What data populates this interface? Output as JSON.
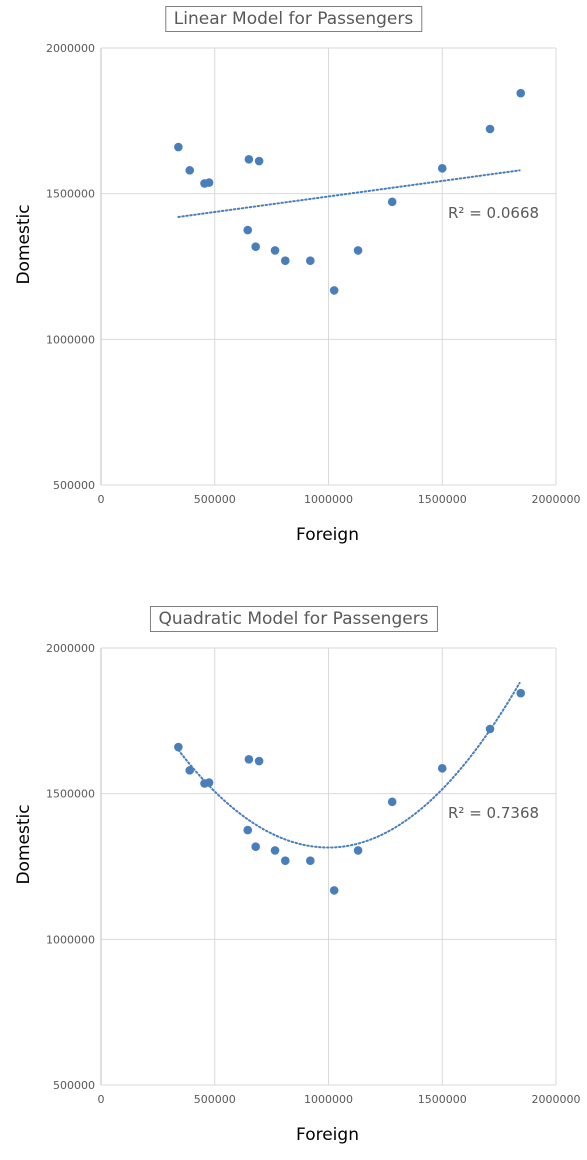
{
  "chart_data": [
    {
      "type": "scatter",
      "title": "Linear Model for Passengers",
      "xlabel": "Foreign",
      "ylabel": "Domestic",
      "xlim": [
        0,
        2000000
      ],
      "ylim": [
        500000,
        2000000
      ],
      "x_ticks": [
        "0",
        "500000",
        "1000000",
        "1500000",
        "2000000"
      ],
      "y_ticks": [
        "500000",
        "1000000",
        "1500000",
        "2000000"
      ],
      "grid": true,
      "trendline": {
        "kind": "linear",
        "label": "R² = 0.0668",
        "start": [
          340000,
          1420000
        ],
        "end": [
          1840000,
          1580000
        ]
      },
      "color": "#4a7ebb",
      "points": [
        [
          340000,
          1660000
        ],
        [
          390000,
          1580000
        ],
        [
          455000,
          1535000
        ],
        [
          475000,
          1538000
        ],
        [
          645000,
          1375000
        ],
        [
          650000,
          1618000
        ],
        [
          680000,
          1318000
        ],
        [
          695000,
          1612000
        ],
        [
          765000,
          1305000
        ],
        [
          810000,
          1270000
        ],
        [
          920000,
          1270000
        ],
        [
          1025000,
          1168000
        ],
        [
          1130000,
          1305000
        ],
        [
          1280000,
          1472000
        ],
        [
          1500000,
          1587000
        ],
        [
          1710000,
          1722000
        ],
        [
          1845000,
          1845000
        ]
      ]
    },
    {
      "type": "scatter",
      "title": "Quadratic Model for Passengers",
      "xlabel": "Foreign",
      "ylabel": "Domestic",
      "xlim": [
        0,
        2000000
      ],
      "ylim": [
        500000,
        2000000
      ],
      "x_ticks": [
        "0",
        "500000",
        "1000000",
        "1500000",
        "2000000"
      ],
      "y_ticks": [
        "500000",
        "1000000",
        "1500000",
        "2000000"
      ],
      "grid": true,
      "trendline": {
        "kind": "quadratic",
        "label": "R² = 0.7368",
        "vertex": [
          1000000,
          1315000
        ],
        "start": [
          340000,
          1650000
        ],
        "end": [
          1840000,
          1880000
        ]
      },
      "color": "#4a7ebb",
      "points": [
        [
          340000,
          1660000
        ],
        [
          390000,
          1580000
        ],
        [
          455000,
          1535000
        ],
        [
          475000,
          1538000
        ],
        [
          645000,
          1375000
        ],
        [
          650000,
          1618000
        ],
        [
          680000,
          1318000
        ],
        [
          695000,
          1612000
        ],
        [
          765000,
          1305000
        ],
        [
          810000,
          1270000
        ],
        [
          920000,
          1270000
        ],
        [
          1025000,
          1168000
        ],
        [
          1130000,
          1305000
        ],
        [
          1280000,
          1472000
        ],
        [
          1500000,
          1587000
        ],
        [
          1710000,
          1722000
        ],
        [
          1845000,
          1845000
        ]
      ]
    }
  ]
}
